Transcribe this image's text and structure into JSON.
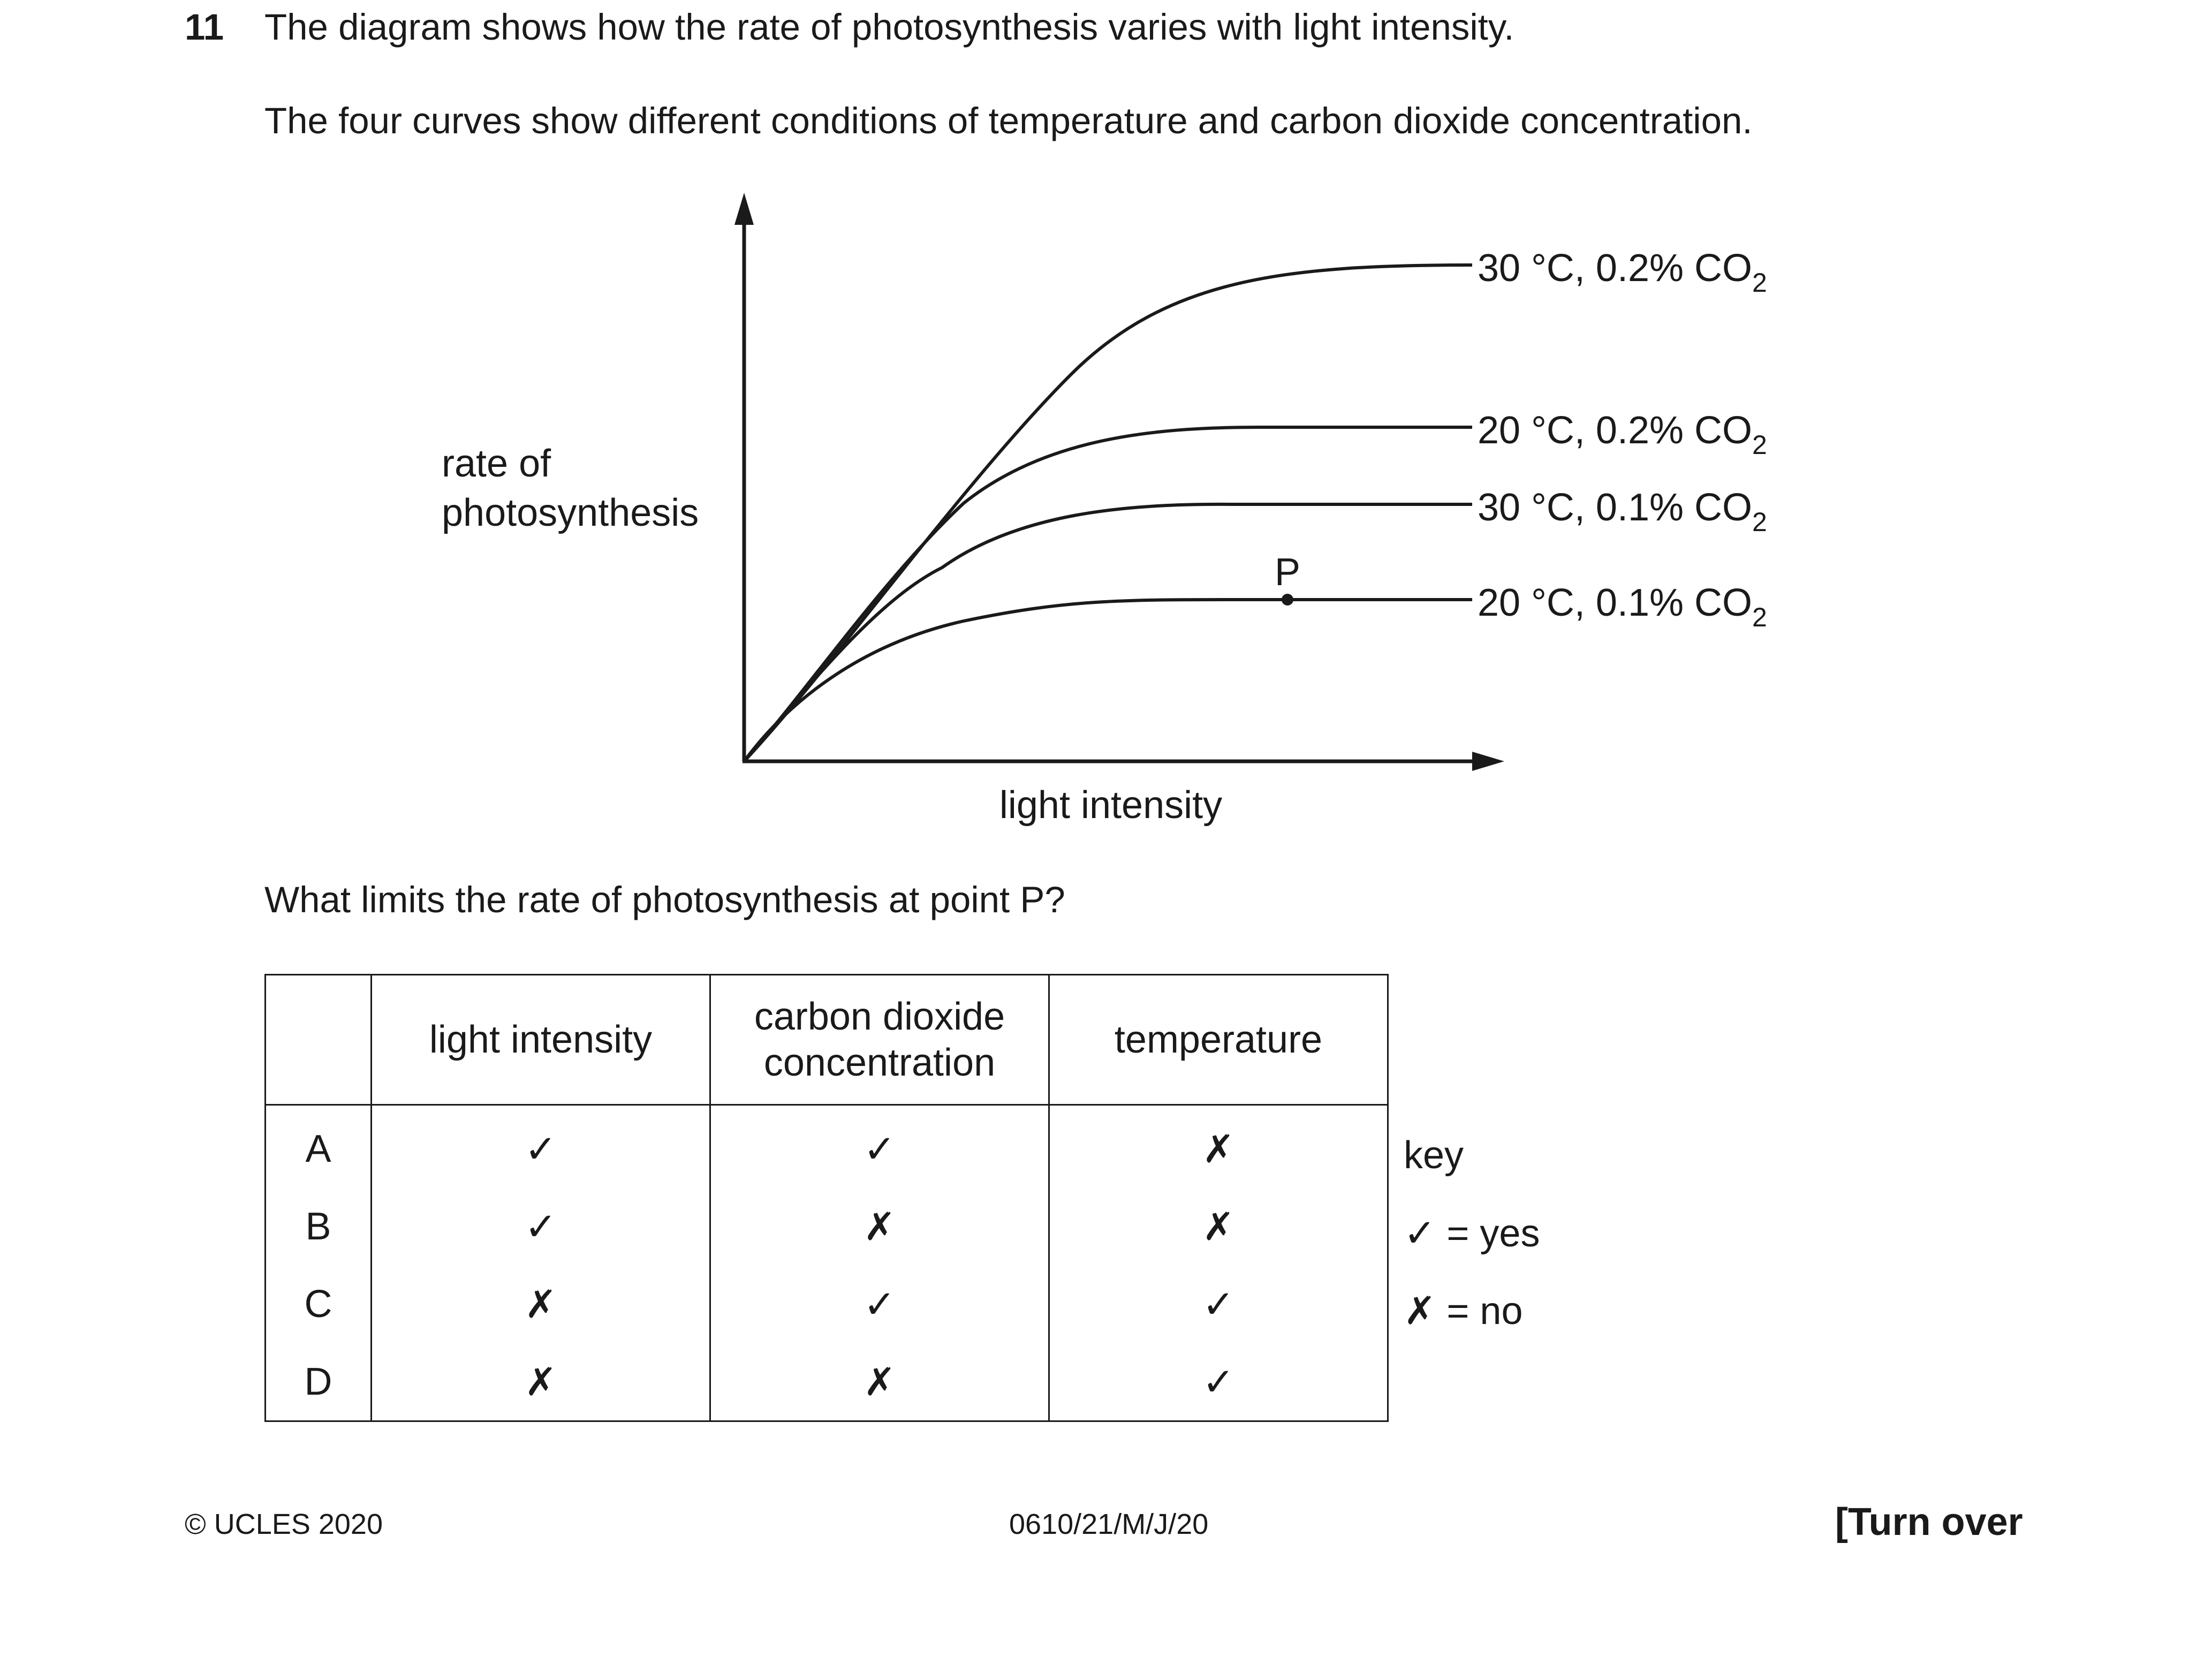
{
  "question": {
    "number": "11",
    "intro": "The diagram shows how the rate of photosynthesis varies with light intensity.",
    "detail": "The four curves show different conditions of temperature and carbon dioxide concentration.",
    "prompt": "What limits the rate of photosynthesis at point P?"
  },
  "diagram": {
    "y_label_line1": "rate of",
    "y_label_line2": "photosynthesis",
    "x_label": "light intensity",
    "point_label": "P",
    "curves": [
      {
        "temp": "30 °C",
        "co2": "0.2% CO",
        "sub": "2"
      },
      {
        "temp": "20 °C",
        "co2": "0.2% CO",
        "sub": "2"
      },
      {
        "temp": "30 °C",
        "co2": "0.1% CO",
        "sub": "2"
      },
      {
        "temp": "20 °C",
        "co2": "0.1% CO",
        "sub": "2"
      }
    ]
  },
  "table": {
    "headers": [
      "light intensity",
      "carbon dioxide",
      "concentration",
      "temperature"
    ],
    "rows": [
      {
        "letter": "A",
        "marks": [
          "✓",
          "✓",
          "✗"
        ]
      },
      {
        "letter": "B",
        "marks": [
          "✓",
          "✗",
          "✗"
        ]
      },
      {
        "letter": "C",
        "marks": [
          "✗",
          "✓",
          "✓"
        ]
      },
      {
        "letter": "D",
        "marks": [
          "✗",
          "✗",
          "✓"
        ]
      }
    ]
  },
  "key": {
    "title": "key",
    "yes_symbol": "✓",
    "yes_text": "= yes",
    "no_symbol": "✗",
    "no_text": "= no"
  },
  "footer": {
    "copyright": "© UCLES 2020",
    "code": "0610/21/M/J/20",
    "turn": "[Turn over"
  }
}
